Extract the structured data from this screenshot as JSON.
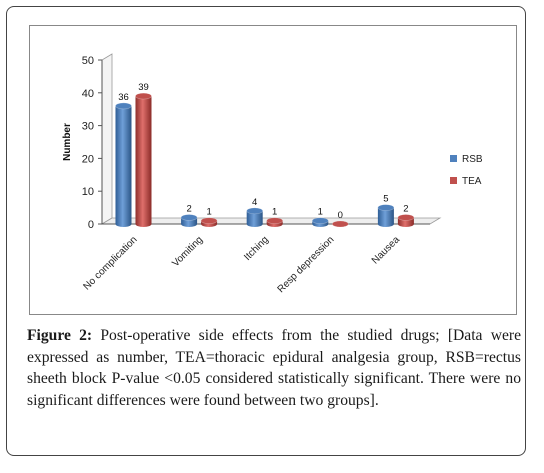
{
  "chart_data": {
    "type": "bar",
    "categories": [
      "No complication",
      "Vomiting",
      "Itching",
      "Resp depression",
      "Nausea"
    ],
    "series": [
      {
        "name": "RSB",
        "values": [
          36,
          2,
          4,
          1,
          5
        ],
        "color": "#4f81bd"
      },
      {
        "name": "TEA",
        "values": [
          39,
          1,
          1,
          0,
          2
        ],
        "color": "#c0504d"
      }
    ],
    "ylabel": "Number",
    "xlabel": "",
    "ylim": [
      0,
      50
    ],
    "yticks": [
      0,
      10,
      20,
      30,
      40,
      50
    ],
    "grid": false,
    "legend_position": "right",
    "style": "3d-cylinder"
  },
  "caption": {
    "label": "Figure 2:",
    "text": " Post-operative side effects from the studied drugs; [Data were expressed as number, TEA=thoracic epidural analgesia group, RSB=rectus sheeth block P-value <0.05 considered statistically significant. There were no significant differences were found between two groups]."
  }
}
